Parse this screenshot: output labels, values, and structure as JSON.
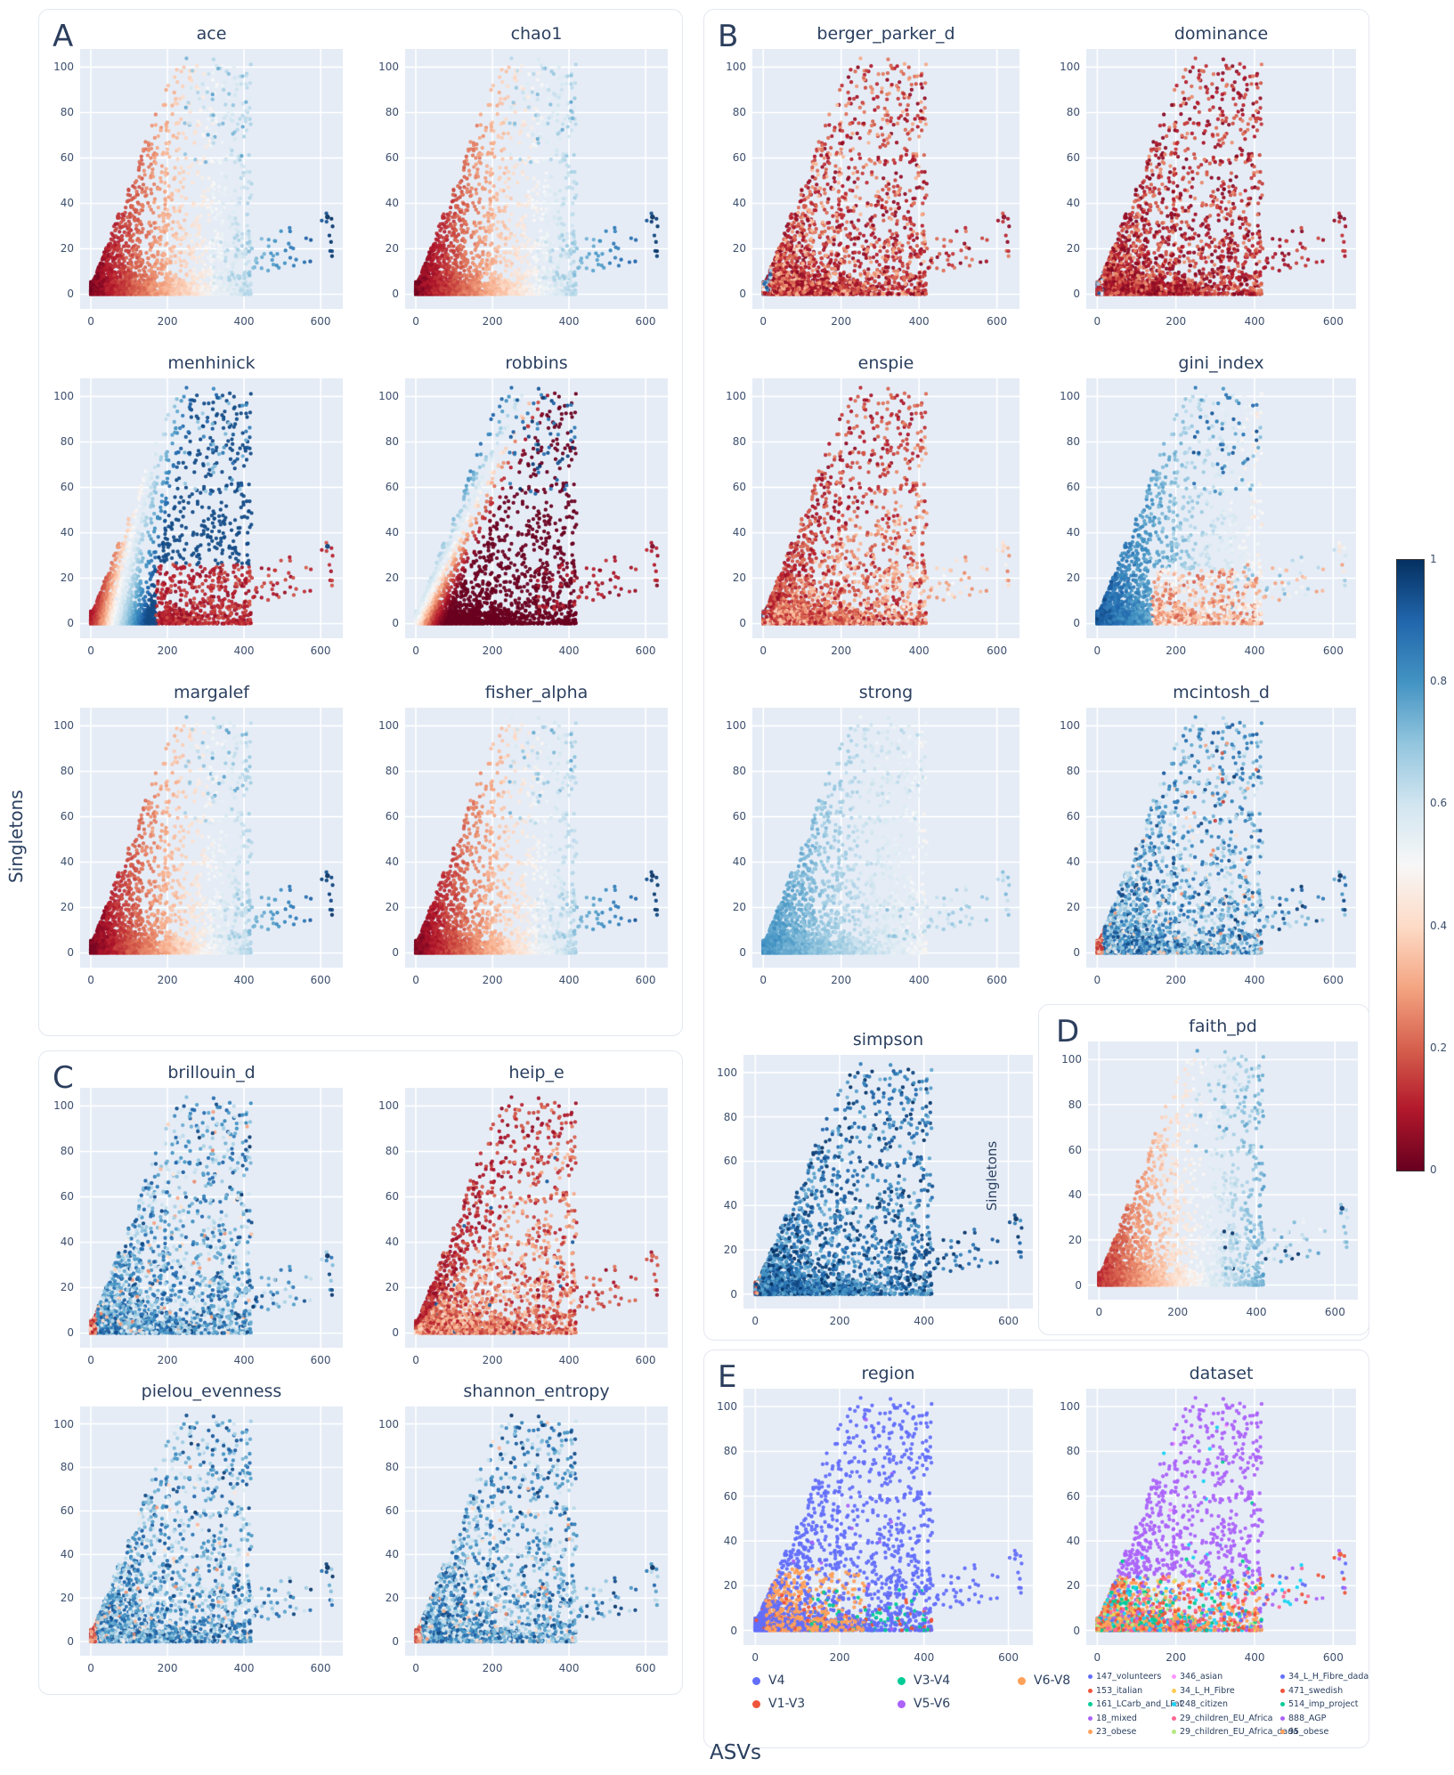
{
  "figure": {
    "xlabel": "ASVs",
    "ylabel_left": "Singletons",
    "ylabel_inner": "Singletons"
  },
  "colorbar": {
    "min": 0,
    "max": 1,
    "ticks": [
      "1",
      "0.8",
      "0.6",
      "0.4",
      "0.2",
      "0"
    ],
    "colormap": "RdBu (red=0 to blue=1)"
  },
  "chart_data": {
    "type": "scatter",
    "xlabel": "ASVs",
    "ylabel": "Singletons",
    "x_ticks": [
      0,
      200,
      400,
      600
    ],
    "y_ticks": [
      0,
      20,
      40,
      60,
      80,
      100
    ],
    "x_range": [
      -28,
      658
    ],
    "y_range": [
      -6.5,
      108
    ],
    "grid": true,
    "point_cloud": "Identical sample cloud in every subplot: dense wedge from (0,0) rising to ~(300,100), sparse top cluster x 245-420 / y 57-104, sparse right arm x 315-640 / y 4-35, extreme point at (618,34). Color of each subplot encodes the normalized metric named in its title (RdBu colorbar 0-1), except panel E which is categorical.",
    "panels": [
      {
        "letter": "A",
        "plots": [
          {
            "title": "ace",
            "mode": "xgrad"
          },
          {
            "title": "chao1",
            "mode": "xgrad"
          },
          {
            "title": "menhinick",
            "mode": "menhinick"
          },
          {
            "title": "robbins",
            "mode": "robbins"
          },
          {
            "title": "margalef",
            "mode": "xgrad"
          },
          {
            "title": "fisher_alpha",
            "mode": "xgrad"
          }
        ]
      },
      {
        "letter": "B",
        "plots": [
          {
            "title": "berger_parker_d",
            "mode": "bp"
          },
          {
            "title": "dominance",
            "mode": "dom"
          },
          {
            "title": "enspie",
            "mode": "enspie"
          },
          {
            "title": "gini_index",
            "mode": "gini"
          },
          {
            "title": "strong",
            "mode": "strong"
          },
          {
            "title": "mcintosh_d",
            "mode": "edgeblue_topred"
          },
          {
            "title": "simpson",
            "mode": "simpson"
          }
        ]
      },
      {
        "letter": "C",
        "plots": [
          {
            "title": "brillouin_d",
            "mode": "edgeblue"
          },
          {
            "title": "heip_e",
            "mode": "heip"
          },
          {
            "title": "pielou_evenness",
            "mode": "edgeblue"
          },
          {
            "title": "shannon_entropy",
            "mode": "edgeblue"
          }
        ]
      },
      {
        "letter": "D",
        "plots": [
          {
            "title": "faith_pd",
            "mode": "faith"
          }
        ]
      },
      {
        "letter": "E",
        "plots": [
          {
            "title": "region",
            "mode": "region"
          },
          {
            "title": "dataset",
            "mode": "dataset"
          }
        ]
      }
    ],
    "colormap_stops": [
      [
        103,
        0,
        31
      ],
      [
        178,
        24,
        43
      ],
      [
        214,
        96,
        77
      ],
      [
        244,
        165,
        130
      ],
      [
        253,
        219,
        199
      ],
      [
        247,
        247,
        247
      ],
      [
        209,
        229,
        240
      ],
      [
        146,
        197,
        222
      ],
      [
        67,
        147,
        195
      ],
      [
        33,
        102,
        172
      ],
      [
        5,
        48,
        97
      ]
    ]
  },
  "legends": {
    "region": {
      "rows": [
        [
          {
            "label": "V4",
            "color": "#636EFA"
          },
          {
            "label": "V3-V4",
            "color": "#00CC96"
          },
          {
            "label": "V6-V8",
            "color": "#FFA15A"
          }
        ],
        [
          {
            "label": "V1-V3",
            "color": "#EF553B"
          },
          {
            "label": "V5-V6",
            "color": "#AB63FA"
          }
        ]
      ]
    },
    "dataset": {
      "columns": [
        [
          {
            "label": "147_volunteers",
            "color": "#636EFA"
          },
          {
            "label": "153_italian",
            "color": "#EF553B"
          },
          {
            "label": "161_LCarb_and_LFat",
            "color": "#00CC96"
          },
          {
            "label": "18_mixed",
            "color": "#AB63FA"
          },
          {
            "label": "23_obese",
            "color": "#FFA15A"
          }
        ],
        [
          {
            "label": "346_asian",
            "color": "#FF97FF"
          },
          {
            "label": "34_L_H_Fibre",
            "color": "#FECB52"
          },
          {
            "label": "248_citizen",
            "color": "#19D3F3"
          },
          {
            "label": "29_children_EU_Africa",
            "color": "#FF6692"
          },
          {
            "label": "29_children_EU_Africa_dada",
            "color": "#B6E880"
          }
        ],
        [
          {
            "label": "34_L_H_Fibre_dada",
            "color": "#636EFA"
          },
          {
            "label": "471_swedish",
            "color": "#EF553B"
          },
          {
            "label": "514_imp_project",
            "color": "#00CC96"
          },
          {
            "label": "888_AGP",
            "color": "#AB63FA"
          },
          {
            "label": "95_obese",
            "color": "#FFA15A"
          }
        ]
      ]
    }
  },
  "colors": {
    "plot_bg": "#E5ECF6",
    "grid": "#ffffff",
    "title_text": "#2a3f5f",
    "tick_text": "#3d4f6d",
    "card_border": "#e3e7ef"
  }
}
